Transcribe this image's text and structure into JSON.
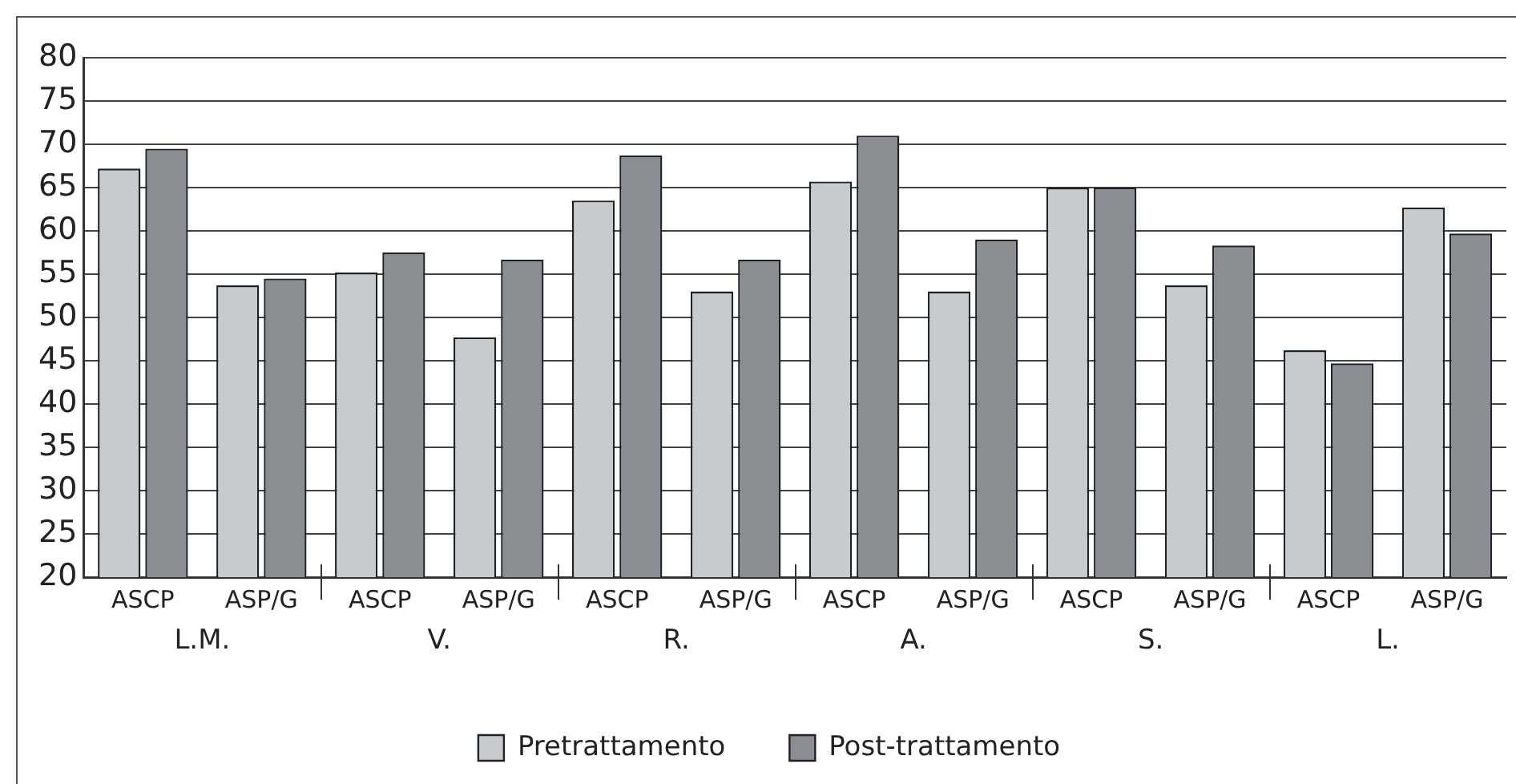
{
  "chart_data": {
    "type": "bar",
    "categories": [
      "ASCP",
      "ASP/G",
      "ASCP",
      "ASP/G",
      "ASCP",
      "ASP/G",
      "ASCP",
      "ASP/G",
      "ASCP",
      "ASP/G",
      "ASCP",
      "ASP/G"
    ],
    "series": [
      {
        "name": "Pretrattamento",
        "color": "#c8cbce",
        "values": [
          67.2,
          53.7,
          55.2,
          47.7,
          63.5,
          53.0,
          65.7,
          53.0,
          65.0,
          53.7,
          46.2,
          62.7
        ]
      },
      {
        "name": "Post-trattamento",
        "color": "#8a8d91",
        "values": [
          69.5,
          54.5,
          57.5,
          56.7,
          68.7,
          56.7,
          71.0,
          59.0,
          65.0,
          58.3,
          44.7,
          59.7
        ]
      }
    ],
    "annotations": [
      "L.M.",
      "V.",
      "R.",
      "A.",
      "S.",
      "L."
    ],
    "ylim": [
      20,
      80
    ],
    "yticks": [
      20,
      25,
      30,
      35,
      40,
      45,
      50,
      55,
      60,
      65,
      70,
      75,
      80
    ],
    "grid": "y",
    "legend": "bottom"
  }
}
